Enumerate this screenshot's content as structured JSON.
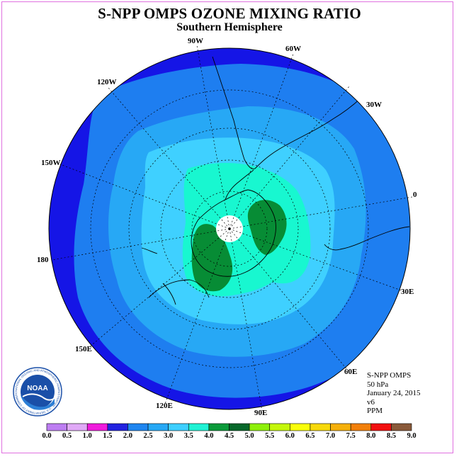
{
  "header": {
    "title": "S-NPP OMPS OZONE MIXING RATIO",
    "subtitle": "Southern Hemisphere"
  },
  "map": {
    "projection": "polar stereographic, South Pole centered",
    "longitude_labels": [
      "90W",
      "60W",
      "30W",
      "0",
      "30E",
      "60E",
      "90E",
      "120E",
      "150E",
      "180",
      "150W",
      "120W"
    ],
    "field_colors": {
      "outer": "#1515e6",
      "ring_2_0_2_5": "#1e7ef0",
      "ring_2_5_3_0": "#22a6f5",
      "ring_3_0_3_5": "#3fd0ff",
      "ring_3_5_4_0": "#18f7d0",
      "max_4_5_5_0": "#078c35",
      "pole_no_data": "#ffffff"
    }
  },
  "info": {
    "line1": "S-NPP OMPS",
    "line2": "50 hPa",
    "line3": "January 24, 2015",
    "line4": "v6",
    "line5": "PPM"
  },
  "colorbar": {
    "unit": "PPM",
    "ticks": [
      "0.0",
      "0.5",
      "1.0",
      "1.5",
      "2.0",
      "2.5",
      "3.0",
      "3.5",
      "4.0",
      "4.5",
      "5.0",
      "5.5",
      "6.0",
      "6.5",
      "7.0",
      "7.5",
      "8.0",
      "8.5",
      "9.0"
    ],
    "colors": [
      "#bd7ef2",
      "#e0a9f7",
      "#f01bdc",
      "#2323e0",
      "#1f86f0",
      "#27a8f5",
      "#3ecfff",
      "#1ff2d4",
      "#0a9a3a",
      "#07682a",
      "#8ef00a",
      "#c4f70a",
      "#f9ff0a",
      "#f7d90a",
      "#f5b00a",
      "#f2800a",
      "#f21010",
      "#8a5a3a"
    ]
  },
  "logo": {
    "text": "NOAA",
    "ring_text": "NATIONAL OCEANIC AND ATMOSPHERIC ADMINISTRATION · U.S. DEPARTMENT OF COMMERCE"
  }
}
